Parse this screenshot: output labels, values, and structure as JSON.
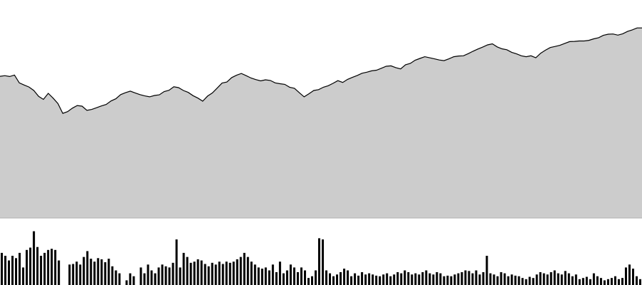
{
  "chart_data": [
    {
      "type": "area",
      "title": "",
      "xlabel": "",
      "ylabel": "",
      "grid": false,
      "fill_color": "#cccccc",
      "line_color": "#000000",
      "ylim": [
        0,
        100
      ],
      "values": [
        65.0,
        65.3,
        64.9,
        65.6,
        62.0,
        61.0,
        60.1,
        58.5,
        55.8,
        54.4,
        57.2,
        55.0,
        52.5,
        48.0,
        48.8,
        50.4,
        51.6,
        51.3,
        49.4,
        49.8,
        50.6,
        51.4,
        52.1,
        53.7,
        54.7,
        56.6,
        57.5,
        58.2,
        57.4,
        56.6,
        56.0,
        55.6,
        56.2,
        56.5,
        58.0,
        58.6,
        60.2,
        59.8,
        58.5,
        57.6,
        56.1,
        55.0,
        53.6,
        55.9,
        57.4,
        59.6,
        61.9,
        62.4,
        64.4,
        65.5,
        66.3,
        65.3,
        64.2,
        63.5,
        62.9,
        63.4,
        63.1,
        62.0,
        61.6,
        61.3,
        60.0,
        59.5,
        57.5,
        55.6,
        57.0,
        58.5,
        58.9,
        60.0,
        60.7,
        61.8,
        63.0,
        62.2,
        63.6,
        64.5,
        65.4,
        66.4,
        66.9,
        67.5,
        67.8,
        68.7,
        69.6,
        69.8,
        69.0,
        68.4,
        70.3,
        70.9,
        72.4,
        73.2,
        74.0,
        73.5,
        73.0,
        72.5,
        72.2,
        73.0,
        74.0,
        74.3,
        74.4,
        75.4,
        76.5,
        77.5,
        78.4,
        79.4,
        79.9,
        78.5,
        77.6,
        77.2,
        76.0,
        75.3,
        74.4,
        74.0,
        74.4,
        73.5,
        75.6,
        77.0,
        78.2,
        78.7,
        79.2,
        80.1,
        80.9,
        81.0,
        81.2,
        81.2,
        81.5,
        82.2,
        82.7,
        83.8,
        84.3,
        84.4,
        83.9,
        84.5,
        85.6,
        86.3,
        87.2,
        87.2
      ]
    },
    {
      "type": "bar",
      "title": "",
      "xlabel": "",
      "ylabel": "",
      "grid": false,
      "bar_color": "#000000",
      "ylim": [
        0,
        100
      ],
      "values": [
        55,
        50,
        42,
        50,
        46,
        55,
        30,
        60,
        64,
        92,
        65,
        50,
        55,
        60,
        62,
        60,
        42,
        0,
        0,
        35,
        36,
        40,
        35,
        48,
        58,
        45,
        40,
        46,
        44,
        39,
        45,
        32,
        25,
        20,
        0,
        8,
        20,
        15,
        0,
        30,
        20,
        35,
        25,
        20,
        30,
        35,
        32,
        30,
        38,
        78,
        30,
        55,
        48,
        38,
        40,
        44,
        42,
        36,
        32,
        38,
        35,
        40,
        36,
        40,
        38,
        40,
        44,
        48,
        55,
        48,
        40,
        35,
        30,
        28,
        30,
        25,
        35,
        22,
        40,
        20,
        25,
        35,
        30,
        22,
        30,
        25,
        12,
        15,
        25,
        80,
        78,
        25,
        20,
        15,
        18,
        22,
        28,
        25,
        15,
        20,
        16,
        22,
        18,
        20,
        18,
        16,
        15,
        18,
        20,
        15,
        18,
        22,
        20,
        25,
        22,
        18,
        20,
        18,
        22,
        25,
        20,
        18,
        22,
        20,
        15,
        16,
        15,
        18,
        20,
        22,
        25,
        24,
        20,
        25,
        18,
        22,
        50,
        20,
        18,
        15,
        22,
        20,
        15,
        18,
        16,
        15,
        12,
        10,
        14,
        12,
        18,
        22,
        20,
        18,
        22,
        25,
        20,
        18,
        24,
        20,
        15,
        18,
        10,
        12,
        14,
        10,
        20,
        15,
        12,
        8,
        10,
        12,
        15,
        10,
        12,
        30,
        35,
        28,
        15,
        10
      ]
    }
  ]
}
